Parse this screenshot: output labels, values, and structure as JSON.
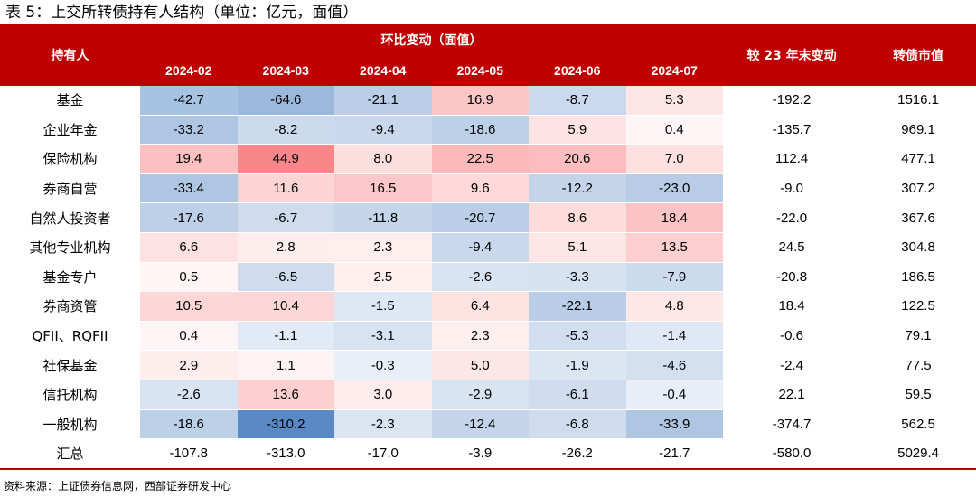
{
  "title": "表 5：上交所转债持有人结构（单位：亿元，面值）",
  "header": {
    "holder": "持有人",
    "mom_group": "环比变动（面值）",
    "months": [
      "2024-02",
      "2024-03",
      "2024-04",
      "2024-05",
      "2024-06",
      "2024-07"
    ],
    "vs_year_end": "较 23 年末变动",
    "market_value": "转债市值"
  },
  "rows": [
    {
      "name": "基金",
      "values": [
        "-42.7",
        "-64.6",
        "-21.1",
        "16.9",
        "-8.7",
        "5.3"
      ],
      "ytd": "-192.2",
      "mv": "1516.1"
    },
    {
      "name": "企业年金",
      "values": [
        "-33.2",
        "-8.2",
        "-9.4",
        "-18.6",
        "5.9",
        "0.4"
      ],
      "ytd": "-135.7",
      "mv": "969.1"
    },
    {
      "name": "保险机构",
      "values": [
        "19.4",
        "44.9",
        "8.0",
        "22.5",
        "20.6",
        "7.0"
      ],
      "ytd": "112.4",
      "mv": "477.1"
    },
    {
      "name": "券商自营",
      "values": [
        "-33.4",
        "11.6",
        "16.5",
        "9.6",
        "-12.2",
        "-23.0"
      ],
      "ytd": "-9.0",
      "mv": "307.2"
    },
    {
      "name": "自然人投资者",
      "values": [
        "-17.6",
        "-6.7",
        "-11.8",
        "-20.7",
        "8.6",
        "18.4"
      ],
      "ytd": "-22.0",
      "mv": "367.6"
    },
    {
      "name": "其他专业机构",
      "values": [
        "6.6",
        "2.8",
        "2.3",
        "-9.4",
        "5.1",
        "13.5"
      ],
      "ytd": "24.5",
      "mv": "304.8"
    },
    {
      "name": "基金专户",
      "values": [
        "0.5",
        "-6.5",
        "2.5",
        "-2.6",
        "-3.3",
        "-7.9"
      ],
      "ytd": "-20.8",
      "mv": "186.5"
    },
    {
      "name": "券商资管",
      "values": [
        "10.5",
        "10.4",
        "-1.5",
        "6.4",
        "-22.1",
        "4.8"
      ],
      "ytd": "18.4",
      "mv": "122.5"
    },
    {
      "name": "QFII、RQFII",
      "values": [
        "0.4",
        "-1.1",
        "-3.1",
        "2.3",
        "-5.3",
        "-1.4"
      ],
      "ytd": "-0.6",
      "mv": "79.1"
    },
    {
      "name": "社保基金",
      "values": [
        "2.9",
        "1.1",
        "-0.3",
        "5.0",
        "-1.9",
        "-4.6"
      ],
      "ytd": "-2.4",
      "mv": "77.5"
    },
    {
      "name": "信托机构",
      "values": [
        "-2.6",
        "13.6",
        "3.0",
        "-2.9",
        "-6.1",
        "-0.4"
      ],
      "ytd": "22.1",
      "mv": "59.5"
    },
    {
      "name": "一般机构",
      "values": [
        "-18.6",
        "-310.2",
        "-2.3",
        "-12.4",
        "-6.8",
        "-33.9"
      ],
      "ytd": "-374.7",
      "mv": "562.5"
    },
    {
      "name": "汇总",
      "values": [
        "-107.8",
        "-313.0",
        "-17.0",
        "-3.9",
        "-26.2",
        "-21.7"
      ],
      "ytd": "-580.0",
      "mv": "5029.4"
    }
  ],
  "heatmap_colors": {
    "positive": "#f8696b",
    "negative": "#5a8ac6",
    "neutral": "#ffffff"
  },
  "source": "资料来源：上证债券信息网，西部证券研发中心"
}
